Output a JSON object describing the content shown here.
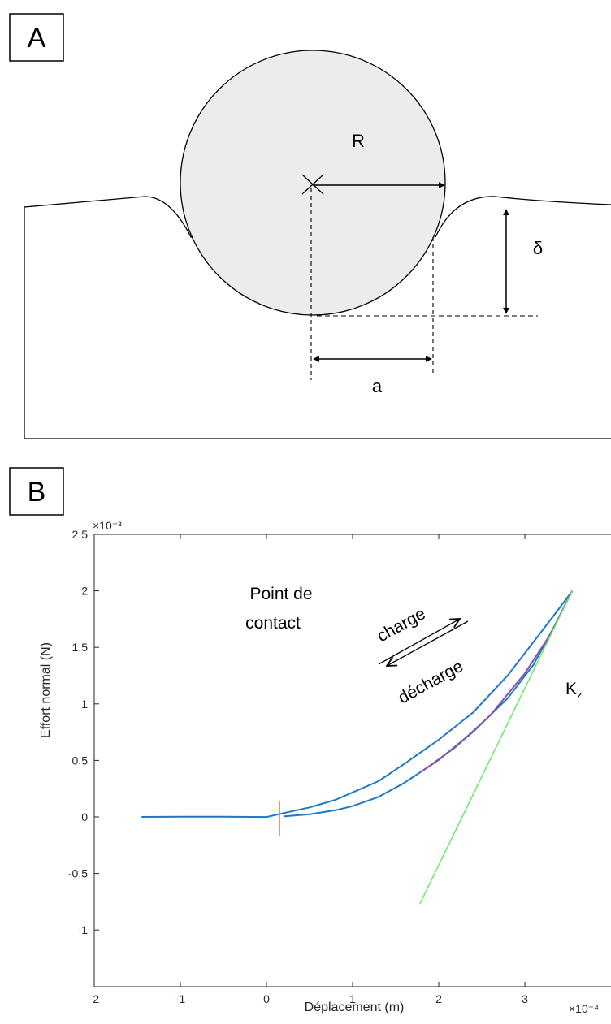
{
  "panel_a": {
    "label": "A",
    "radius_label": "R",
    "depth_label": "δ",
    "contact_radius_label": "a"
  },
  "panel_b": {
    "label": "B",
    "chart_data": {
      "type": "line",
      "title": "",
      "xlabel": "Déplacement (m)",
      "ylabel": "Effort normal (N)",
      "x_exponent": "×10⁻⁴",
      "y_exponent": "×10⁻³",
      "xlim": [
        -2,
        4
      ],
      "ylim": [
        -1,
        2.5
      ],
      "xticks": [
        "-2",
        "-1",
        "0",
        "1",
        "2",
        "3"
      ],
      "yticks": [
        "2.5",
        "2",
        "1.5",
        "1",
        "0.5",
        "0",
        "-0.5",
        "-1"
      ],
      "grid": false,
      "series": [
        {
          "key": "charge",
          "color": "#1f77c8",
          "x": [
            -1.45,
            -1.0,
            -0.5,
            0.0,
            0.2,
            0.5,
            0.8,
            1.0,
            1.3,
            1.6,
            2.0,
            2.4,
            2.8,
            3.1,
            3.35,
            3.55
          ],
          "y": [
            0.0,
            0.005,
            0.005,
            0.0,
            0.03,
            0.08,
            0.15,
            0.22,
            0.32,
            0.47,
            0.68,
            0.92,
            1.25,
            1.55,
            1.8,
            2.0
          ]
        },
        {
          "key": "decharge",
          "color": "#1f77c8",
          "x": [
            3.55,
            3.35,
            3.1,
            2.8,
            2.4,
            2.0,
            1.6,
            1.3,
            1.0,
            0.8,
            0.5,
            0.2
          ],
          "y": [
            2.0,
            1.7,
            1.35,
            1.05,
            0.75,
            0.5,
            0.3,
            0.18,
            0.1,
            0.06,
            0.02,
            0.0
          ]
        },
        {
          "key": "fit",
          "color": "#8e4fa8",
          "x": [
            1.8,
            2.2,
            2.6,
            3.0,
            3.3,
            3.55
          ],
          "y": [
            0.4,
            0.62,
            0.9,
            1.27,
            1.62,
            2.0
          ]
        },
        {
          "key": "stiffness",
          "color": "#66ee66",
          "x": [
            1.78,
            3.55
          ],
          "y": [
            -0.77,
            2.0
          ]
        }
      ],
      "contact_point": {
        "x": 0.15,
        "y0": -0.17,
        "y1": 0.14,
        "color": "#e8681f"
      },
      "annotations": {
        "contact": [
          "Point de",
          "contact"
        ],
        "charge": "charge",
        "decharge": "décharge",
        "stiffness_main": "K",
        "stiffness_sub": "z"
      }
    }
  }
}
